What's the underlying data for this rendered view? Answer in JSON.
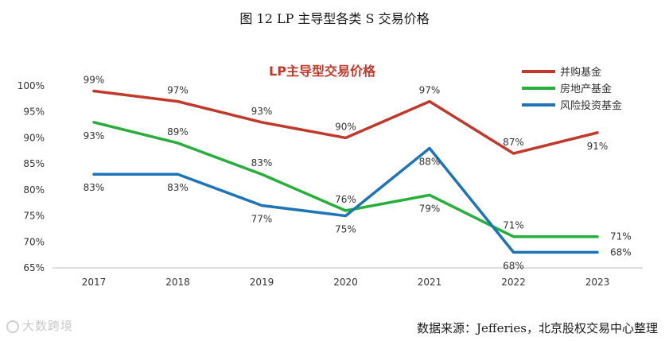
{
  "figure": {
    "title": "图 12    LP 主导型各类 S 交易价格",
    "source": "数据来源：Jefferies，北京股权交易中心整理",
    "watermark": "大数跨境"
  },
  "chart_data": {
    "type": "line",
    "title": "LP主导型交易价格",
    "x": [
      "2017",
      "2018",
      "2019",
      "2020",
      "2021",
      "2022",
      "2023"
    ],
    "ylim": [
      65,
      100
    ],
    "yticks": [
      "65%",
      "70%",
      "75%",
      "80%",
      "85%",
      "90%",
      "95%",
      "100%"
    ],
    "grid": false,
    "legend_position": "top-right",
    "series": [
      {
        "name": "并购基金",
        "color": "#C0392B",
        "values": [
          99,
          97,
          93,
          90,
          97,
          87,
          91
        ],
        "labels": [
          "99%",
          "97%",
          "93%",
          "90%",
          "97%",
          "87%",
          "91%"
        ],
        "label_pos": [
          "above",
          "above",
          "above",
          "above",
          "above",
          "above",
          "below"
        ]
      },
      {
        "name": "房地产基金",
        "color": "#27AE3B",
        "values": [
          93,
          89,
          83,
          76,
          79,
          71,
          71
        ],
        "labels": [
          "93%",
          "89%",
          "83%",
          "76%",
          "79%",
          "71%",
          "71%"
        ],
        "label_pos": [
          "below",
          "above",
          "above",
          "above",
          "below",
          "above",
          "right"
        ]
      },
      {
        "name": "风险投资基金",
        "color": "#1F73B7",
        "values": [
          83,
          83,
          77,
          75,
          88,
          68,
          68
        ],
        "labels": [
          "83%",
          "83%",
          "77%",
          "75%",
          "88%",
          "68%",
          "68%"
        ],
        "label_pos": [
          "below",
          "below",
          "below",
          "below",
          "below",
          "below",
          "right"
        ]
      }
    ]
  }
}
